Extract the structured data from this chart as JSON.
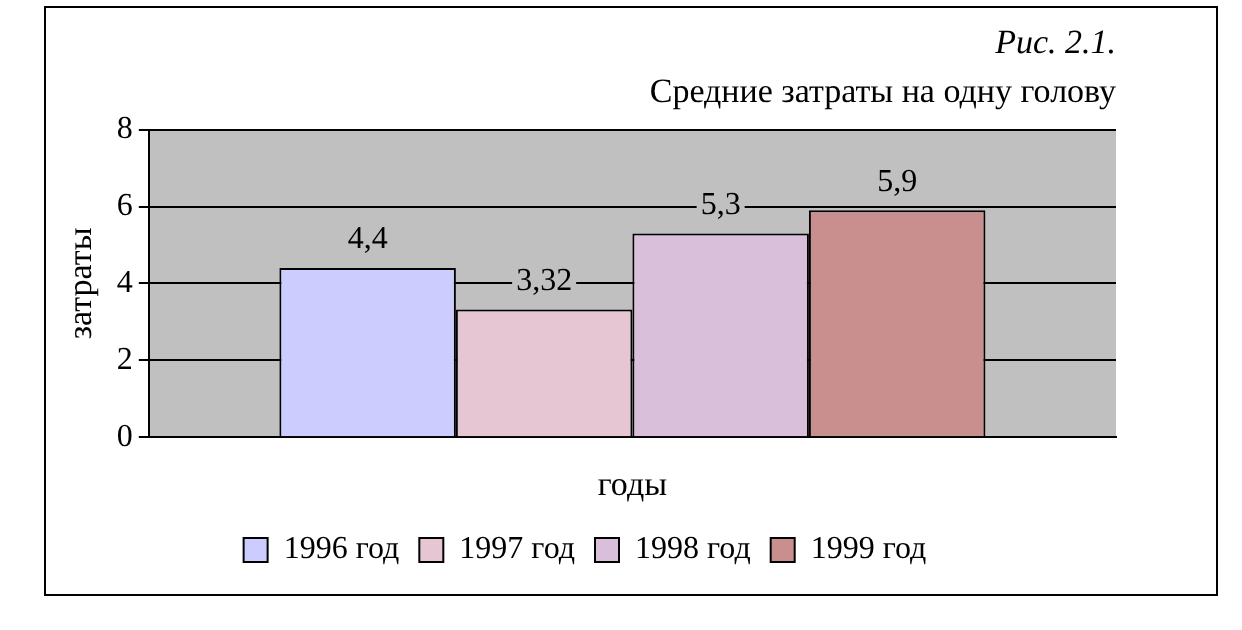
{
  "chart_data": {
    "type": "bar",
    "title": "Рис. 2.1.",
    "subtitle": "Средние затраты на одну голову",
    "xlabel": "годы",
    "ylabel": "затраты",
    "categories": [
      null
    ],
    "series": [
      {
        "name": "1996 год",
        "color": "#ccccff",
        "values": [
          4.4
        ],
        "value_labels": [
          "4,4"
        ]
      },
      {
        "name": "1997 год",
        "color": "#e6c6d2",
        "values": [
          3.32
        ],
        "value_labels": [
          "3,32"
        ]
      },
      {
        "name": "1998 год",
        "color": "#d9bfd9",
        "values": [
          5.3
        ],
        "value_labels": [
          "5,3"
        ]
      },
      {
        "name": "1999 год",
        "color": "#c98f8f",
        "values": [
          5.9
        ],
        "value_labels": [
          "5,9"
        ]
      }
    ],
    "ylim": [
      0,
      8
    ],
    "yticks": [
      0,
      2,
      4,
      6,
      8
    ],
    "grid": "y",
    "legend": "bottom"
  }
}
